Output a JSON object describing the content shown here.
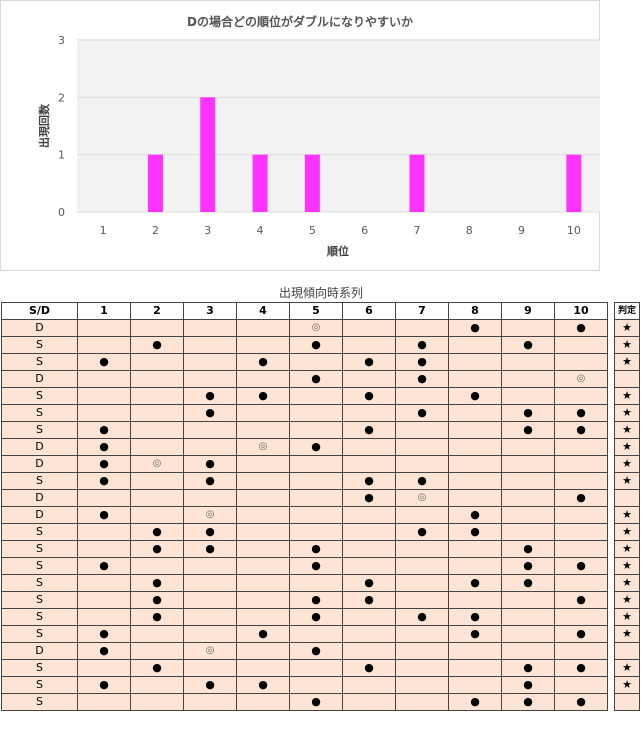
{
  "chart_data": {
    "type": "bar",
    "title": "Dの場合どの順位がダブルになりやすいか",
    "xlabel": "順位",
    "ylabel": "出現回数",
    "categories": [
      "1",
      "2",
      "3",
      "4",
      "5",
      "6",
      "7",
      "8",
      "9",
      "10"
    ],
    "values": [
      0,
      1,
      2,
      1,
      1,
      0,
      1,
      0,
      0,
      1
    ],
    "ylim": [
      0,
      3
    ],
    "yticks": [
      "0",
      "1",
      "2",
      "3"
    ],
    "bar_color": "#ff33ff",
    "grid": true,
    "plot_background": "#f2f2f2"
  },
  "table": {
    "title": "出現傾向時系列",
    "sd_header": "S/D",
    "columns": [
      "1",
      "2",
      "3",
      "4",
      "5",
      "6",
      "7",
      "8",
      "9",
      "10"
    ],
    "judge_header": "判定",
    "dot": "●",
    "double": "◎",
    "star": "★",
    "rows": [
      {
        "sd": "D",
        "marks": [
          "",
          "",
          "",
          "",
          "◎",
          "",
          "",
          "●",
          "",
          "●"
        ],
        "judge": "★"
      },
      {
        "sd": "S",
        "marks": [
          "",
          "●",
          "",
          "",
          "●",
          "",
          "●",
          "",
          "●",
          ""
        ],
        "judge": "★"
      },
      {
        "sd": "S",
        "marks": [
          "●",
          "",
          "",
          "●",
          "",
          "●",
          "●",
          "",
          "",
          ""
        ],
        "judge": "★"
      },
      {
        "sd": "D",
        "marks": [
          "",
          "",
          "",
          "",
          "●",
          "",
          "●",
          "",
          "",
          "◎"
        ],
        "judge": ""
      },
      {
        "sd": "S",
        "marks": [
          "",
          "",
          "●",
          "●",
          "",
          "●",
          "",
          "●",
          "",
          ""
        ],
        "judge": "★"
      },
      {
        "sd": "S",
        "marks": [
          "",
          "",
          "●",
          "",
          "",
          "",
          "●",
          "",
          "●",
          "●"
        ],
        "judge": "★"
      },
      {
        "sd": "S",
        "marks": [
          "●",
          "",
          "",
          "",
          "",
          "●",
          "",
          "",
          "●",
          "●"
        ],
        "judge": "★"
      },
      {
        "sd": "D",
        "marks": [
          "●",
          "",
          "",
          "◎",
          "●",
          "",
          "",
          "",
          "",
          ""
        ],
        "judge": "★"
      },
      {
        "sd": "D",
        "marks": [
          "●",
          "◎",
          "●",
          "",
          "",
          "",
          "",
          "",
          "",
          ""
        ],
        "judge": "★"
      },
      {
        "sd": "S",
        "marks": [
          "●",
          "",
          "●",
          "",
          "",
          "●",
          "●",
          "",
          "",
          ""
        ],
        "judge": "★"
      },
      {
        "sd": "D",
        "marks": [
          "",
          "",
          "",
          "",
          "",
          "●",
          "◎",
          "",
          "",
          "●"
        ],
        "judge": ""
      },
      {
        "sd": "D",
        "marks": [
          "●",
          "",
          "◎",
          "",
          "",
          "",
          "",
          "●",
          "",
          ""
        ],
        "judge": "★"
      },
      {
        "sd": "S",
        "marks": [
          "",
          "●",
          "●",
          "",
          "",
          "",
          "●",
          "●",
          "",
          ""
        ],
        "judge": "★"
      },
      {
        "sd": "S",
        "marks": [
          "",
          "●",
          "●",
          "",
          "●",
          "",
          "",
          "",
          "●",
          ""
        ],
        "judge": "★"
      },
      {
        "sd": "S",
        "marks": [
          "●",
          "",
          "",
          "",
          "●",
          "",
          "",
          "",
          "●",
          "●"
        ],
        "judge": "★"
      },
      {
        "sd": "S",
        "marks": [
          "",
          "●",
          "",
          "",
          "",
          "●",
          "",
          "●",
          "●",
          ""
        ],
        "judge": "★"
      },
      {
        "sd": "S",
        "marks": [
          "",
          "●",
          "",
          "",
          "●",
          "●",
          "",
          "",
          "",
          "●"
        ],
        "judge": "★"
      },
      {
        "sd": "S",
        "marks": [
          "",
          "●",
          "",
          "",
          "●",
          "",
          "●",
          "●",
          "",
          ""
        ],
        "judge": "★"
      },
      {
        "sd": "S",
        "marks": [
          "●",
          "",
          "",
          "●",
          "",
          "",
          "",
          "●",
          "",
          "●"
        ],
        "judge": "★"
      },
      {
        "sd": "D",
        "marks": [
          "●",
          "",
          "◎",
          "",
          "●",
          "",
          "",
          "",
          "",
          ""
        ],
        "judge": ""
      },
      {
        "sd": "S",
        "marks": [
          "",
          "●",
          "",
          "",
          "",
          "●",
          "",
          "",
          "●",
          "●"
        ],
        "judge": "★"
      },
      {
        "sd": "S",
        "marks": [
          "●",
          "",
          "●",
          "●",
          "",
          "",
          "",
          "",
          "●",
          ""
        ],
        "judge": "★"
      },
      {
        "sd": "S",
        "marks": [
          "",
          "",
          "",
          "",
          "●",
          "",
          "",
          "●",
          "●",
          "●"
        ],
        "judge": ""
      }
    ]
  }
}
